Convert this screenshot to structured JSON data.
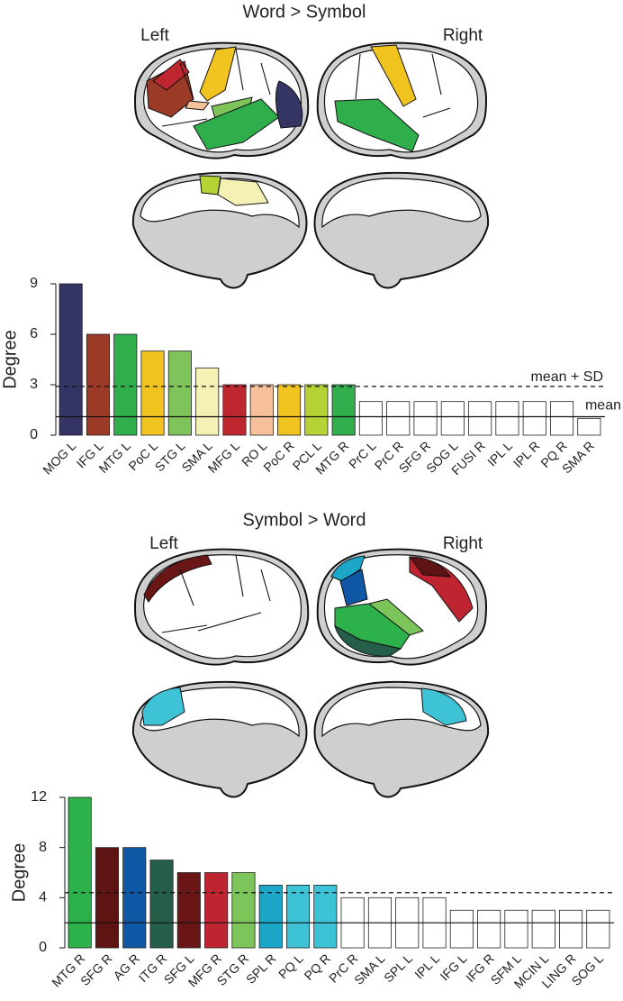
{
  "chart_data": [
    {
      "type": "bar",
      "title": "Word > Symbol",
      "panel_labels": [
        "Left",
        "Right"
      ],
      "y_label": "Degree",
      "categories": [
        "MOG L",
        "IFG L",
        "MTG L",
        "PoC L",
        "STG L",
        "SMA L",
        "MFG L",
        "RO L",
        "PoC R",
        "PCL L",
        "MTG R",
        "PrC L",
        "PrC R",
        "SFG R",
        "SOG L",
        "FUSI R",
        "IPL L",
        "IPL R",
        "PQ R",
        "SMA R"
      ],
      "values": [
        9,
        6,
        6,
        5,
        5,
        4,
        3,
        3,
        3,
        3,
        3,
        2,
        2,
        2,
        2,
        2,
        2,
        2,
        2,
        1
      ],
      "colors": [
        "#343465",
        "#9b3b27",
        "#2fae4b",
        "#f1c31f",
        "#7fc45b",
        "#f5f1b4",
        "#bf2730",
        "#f6c09a",
        "#f1c31f",
        "#b6d335",
        "#2fae4b",
        "#ffffff",
        "#ffffff",
        "#ffffff",
        "#ffffff",
        "#ffffff",
        "#ffffff",
        "#ffffff",
        "#ffffff",
        "#ffffff"
      ],
      "ylim": [
        0,
        9
      ],
      "yticks": [
        0,
        3,
        6,
        9
      ],
      "reference_lines": [
        {
          "label": "mean + SD",
          "value": 2.9,
          "style": "dashed"
        },
        {
          "label": "mean",
          "value": 1.1,
          "style": "solid"
        }
      ]
    },
    {
      "type": "bar",
      "title": "Symbol > Word",
      "panel_labels": [
        "Left",
        "Right"
      ],
      "y_label": "Degree",
      "categories": [
        "MTG R",
        "SFG R",
        "AG R",
        "ITG R",
        "SFG L",
        "MFG R",
        "STG R",
        "SPL R",
        "PQ L",
        "PQ R",
        "PrC R",
        "SMA L",
        "SPL L",
        "IPL L",
        "IFG L",
        "IFG R",
        "SFM L",
        "MCIN L",
        "LING R",
        "SOG L"
      ],
      "values": [
        12,
        8,
        8,
        7,
        6,
        6,
        6,
        5,
        5,
        5,
        4,
        4,
        4,
        4,
        3,
        3,
        3,
        3,
        3,
        3
      ],
      "colors": [
        "#2db24b",
        "#5f1414",
        "#0f56a4",
        "#265f49",
        "#6a1516",
        "#be2530",
        "#7cc55a",
        "#1ca7c9",
        "#3dc2d6",
        "#3dc2d6",
        "#ffffff",
        "#ffffff",
        "#ffffff",
        "#ffffff",
        "#ffffff",
        "#ffffff",
        "#ffffff",
        "#ffffff",
        "#ffffff",
        "#ffffff"
      ],
      "ylim": [
        0,
        12
      ],
      "yticks": [
        0,
        4,
        8,
        12
      ],
      "reference_lines": [
        {
          "value": 4.4,
          "style": "dashed"
        },
        {
          "value": 2,
          "style": "solid"
        }
      ]
    }
  ]
}
